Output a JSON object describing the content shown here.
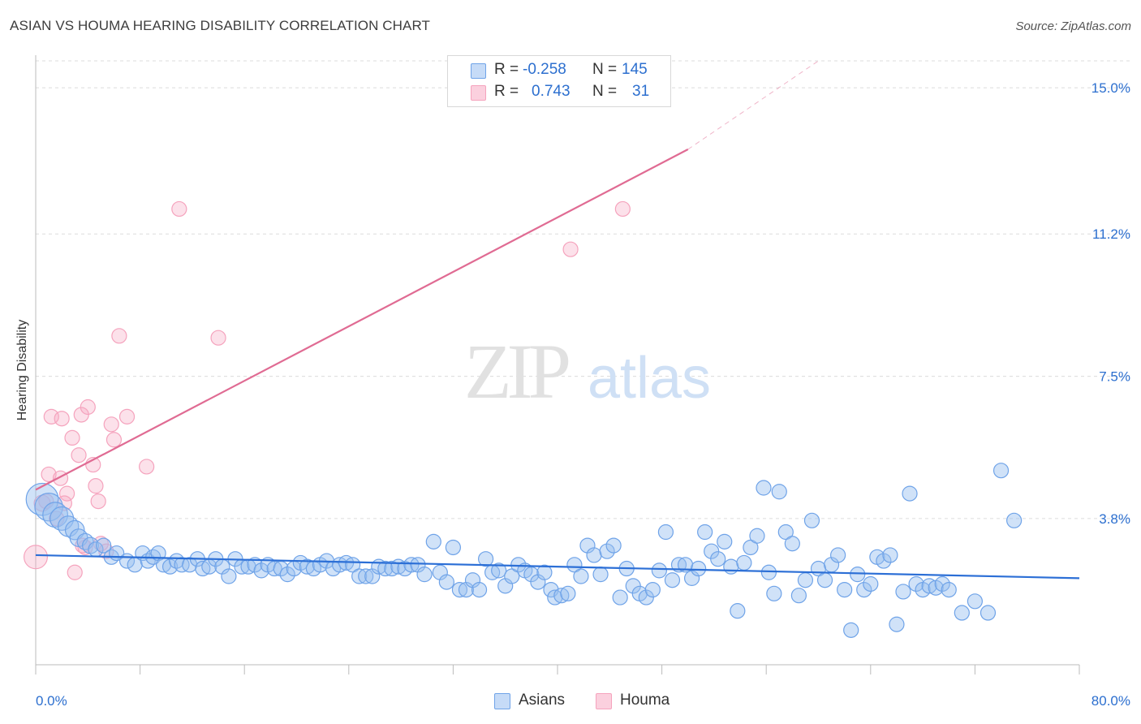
{
  "title": "ASIAN VS HOUMA HEARING DISABILITY CORRELATION CHART",
  "source": "Source: ZipAtlas.com",
  "watermark": {
    "zip": "ZIP",
    "atlas": "atlas"
  },
  "stats": [
    {
      "r_label": "R =",
      "r_value": "-0.258",
      "n_label": "N =",
      "n_value": "145",
      "color": "#a8c8f5"
    },
    {
      "r_label": "R =",
      "r_value": "0.743",
      "n_label": "N =",
      "n_value": "31",
      "color": "#f5b3c8"
    }
  ],
  "legend": [
    {
      "label": "Asians",
      "color": "#a8c8f5"
    },
    {
      "label": "Houma",
      "color": "#f5b3c8"
    }
  ],
  "chart_data": {
    "type": "scatter",
    "title": "ASIAN VS HOUMA HEARING DISABILITY CORRELATION CHART",
    "xlabel": "",
    "ylabel": "Hearing Disability",
    "xlim": [
      0,
      80
    ],
    "ylim": [
      0,
      15.7
    ],
    "x_tick_labels": [
      "0.0%",
      "80.0%"
    ],
    "y_ticks": [
      3.8,
      7.5,
      11.2,
      15.0
    ],
    "y_tick_labels": [
      "3.8%",
      "7.5%",
      "11.2%",
      "15.0%"
    ],
    "grid": true,
    "series": [
      {
        "name": "Asians",
        "color": "#6fa3e8",
        "line_color": "#2c6fd6",
        "trend": [
          [
            0,
            2.85
          ],
          [
            80,
            2.25
          ]
        ],
        "points": [
          [
            0.5,
            4.3,
            2.2
          ],
          [
            1.0,
            4.1,
            1.9
          ],
          [
            1.5,
            3.9,
            1.7
          ],
          [
            2.0,
            3.8,
            1.6
          ],
          [
            2.5,
            3.6,
            1.4
          ],
          [
            3.0,
            3.5,
            1.3
          ],
          [
            3.3,
            3.3,
            1.2
          ],
          [
            3.8,
            3.2,
            1.1
          ],
          [
            4.2,
            3.1,
            1.1
          ],
          [
            4.6,
            3.0,
            1.0
          ],
          [
            5.2,
            3.1,
            1.0
          ],
          [
            5.8,
            2.8,
            1.0
          ],
          [
            6.2,
            2.9,
            1.0
          ],
          [
            7.0,
            2.7,
            1.0
          ],
          [
            7.6,
            2.6,
            1.0
          ],
          [
            8.2,
            2.9,
            1.0
          ],
          [
            8.6,
            2.7,
            1.0
          ],
          [
            9.0,
            2.8,
            1.0
          ],
          [
            9.4,
            2.9,
            1.0
          ],
          [
            9.8,
            2.6,
            1.0
          ],
          [
            10.3,
            2.55,
            1.0
          ],
          [
            10.8,
            2.7,
            1.0
          ],
          [
            11.2,
            2.6,
            1.0
          ],
          [
            11.8,
            2.6,
            1.0
          ],
          [
            12.4,
            2.75,
            1.0
          ],
          [
            12.8,
            2.5,
            1.0
          ],
          [
            13.3,
            2.55,
            1.0
          ],
          [
            13.8,
            2.75,
            1.0
          ],
          [
            14.3,
            2.55,
            1.0
          ],
          [
            14.8,
            2.3,
            1.0
          ],
          [
            15.3,
            2.75,
            1.0
          ],
          [
            15.8,
            2.55,
            1.0
          ],
          [
            16.3,
            2.55,
            1.0
          ],
          [
            16.8,
            2.6,
            1.0
          ],
          [
            17.3,
            2.45,
            1.0
          ],
          [
            17.8,
            2.6,
            1.0
          ],
          [
            18.3,
            2.5,
            1.0
          ],
          [
            18.8,
            2.5,
            1.0
          ],
          [
            19.3,
            2.35,
            1.0
          ],
          [
            19.8,
            2.5,
            1.0
          ],
          [
            20.3,
            2.65,
            1.0
          ],
          [
            20.8,
            2.55,
            1.0
          ],
          [
            21.3,
            2.5,
            1.0
          ],
          [
            21.8,
            2.6,
            1.0
          ],
          [
            22.3,
            2.7,
            1.0
          ],
          [
            22.8,
            2.5,
            1.0
          ],
          [
            23.3,
            2.6,
            1.0
          ],
          [
            23.8,
            2.65,
            1.0
          ],
          [
            24.3,
            2.6,
            1.0
          ],
          [
            24.8,
            2.3,
            1.0
          ],
          [
            25.3,
            2.3,
            1.0
          ],
          [
            25.8,
            2.3,
            1.0
          ],
          [
            26.3,
            2.55,
            1.0
          ],
          [
            26.8,
            2.5,
            1.0
          ],
          [
            27.3,
            2.5,
            1.0
          ],
          [
            27.8,
            2.55,
            1.0
          ],
          [
            28.3,
            2.5,
            1.0
          ],
          [
            28.8,
            2.6,
            1.0
          ],
          [
            29.3,
            2.6,
            1.0
          ],
          [
            29.8,
            2.35,
            1.0
          ],
          [
            30.5,
            3.2,
            1.0
          ],
          [
            31.0,
            2.4,
            1.0
          ],
          [
            31.5,
            2.15,
            1.0
          ],
          [
            32.0,
            3.05,
            1.0
          ],
          [
            32.5,
            1.95,
            1.0
          ],
          [
            33.0,
            1.95,
            1.0
          ],
          [
            33.5,
            2.2,
            1.0
          ],
          [
            34.0,
            1.95,
            1.0
          ],
          [
            34.5,
            2.75,
            1.0
          ],
          [
            35.0,
            2.4,
            1.0
          ],
          [
            35.5,
            2.45,
            1.0
          ],
          [
            36.0,
            2.05,
            1.0
          ],
          [
            36.5,
            2.3,
            1.0
          ],
          [
            37.0,
            2.6,
            1.0
          ],
          [
            37.5,
            2.45,
            1.0
          ],
          [
            38.0,
            2.35,
            1.0
          ],
          [
            38.5,
            2.15,
            1.0
          ],
          [
            39.0,
            2.4,
            1.0
          ],
          [
            39.5,
            1.95,
            1.0
          ],
          [
            39.8,
            1.75,
            1.0
          ],
          [
            40.3,
            1.8,
            1.0
          ],
          [
            40.8,
            1.85,
            1.0
          ],
          [
            41.3,
            2.6,
            1.0
          ],
          [
            41.8,
            2.3,
            1.0
          ],
          [
            42.3,
            3.1,
            1.0
          ],
          [
            42.8,
            2.85,
            1.0
          ],
          [
            43.3,
            2.35,
            1.0
          ],
          [
            43.8,
            2.95,
            1.0
          ],
          [
            44.3,
            3.1,
            1.0
          ],
          [
            44.8,
            1.75,
            1.0
          ],
          [
            45.3,
            2.5,
            1.0
          ],
          [
            45.8,
            2.05,
            1.0
          ],
          [
            46.3,
            1.85,
            1.0
          ],
          [
            46.8,
            1.75,
            1.0
          ],
          [
            47.3,
            1.95,
            1.0
          ],
          [
            47.8,
            2.45,
            1.0
          ],
          [
            48.3,
            3.45,
            1.0
          ],
          [
            48.8,
            2.2,
            1.0
          ],
          [
            49.3,
            2.6,
            1.0
          ],
          [
            49.8,
            2.6,
            1.0
          ],
          [
            50.3,
            2.25,
            1.0
          ],
          [
            50.8,
            2.5,
            1.0
          ],
          [
            51.3,
            3.45,
            1.0
          ],
          [
            51.8,
            2.95,
            1.0
          ],
          [
            52.3,
            2.75,
            1.0
          ],
          [
            52.8,
            3.2,
            1.0
          ],
          [
            53.3,
            2.55,
            1.0
          ],
          [
            53.8,
            1.4,
            1.0
          ],
          [
            54.3,
            2.65,
            1.0
          ],
          [
            54.8,
            3.05,
            1.0
          ],
          [
            55.3,
            3.35,
            1.0
          ],
          [
            55.8,
            4.6,
            1.0
          ],
          [
            56.2,
            2.4,
            1.0
          ],
          [
            56.6,
            1.85,
            1.0
          ],
          [
            57.0,
            4.5,
            1.0
          ],
          [
            57.5,
            3.45,
            1.0
          ],
          [
            58.0,
            3.15,
            1.0
          ],
          [
            58.5,
            1.8,
            1.0
          ],
          [
            59.0,
            2.2,
            1.0
          ],
          [
            59.5,
            3.75,
            1.0
          ],
          [
            60.0,
            2.5,
            1.0
          ],
          [
            60.5,
            2.2,
            1.0
          ],
          [
            61.0,
            2.6,
            1.0
          ],
          [
            61.5,
            2.85,
            1.0
          ],
          [
            62.0,
            1.95,
            1.0
          ],
          [
            62.5,
            0.9,
            1.0
          ],
          [
            63.0,
            2.35,
            1.0
          ],
          [
            63.5,
            1.95,
            1.0
          ],
          [
            64.0,
            2.1,
            1.0
          ],
          [
            64.5,
            2.8,
            1.0
          ],
          [
            65.0,
            2.7,
            1.0
          ],
          [
            65.5,
            2.85,
            1.0
          ],
          [
            66.0,
            1.05,
            1.0
          ],
          [
            66.5,
            1.9,
            1.0
          ],
          [
            67.0,
            4.45,
            1.0
          ],
          [
            67.5,
            2.1,
            1.0
          ],
          [
            68.0,
            1.95,
            1.0
          ],
          [
            68.5,
            2.05,
            1.0
          ],
          [
            69.0,
            2.0,
            1.0
          ],
          [
            69.5,
            2.1,
            1.0
          ],
          [
            70.0,
            1.95,
            1.0
          ],
          [
            71.0,
            1.35,
            1.0
          ],
          [
            72.0,
            1.65,
            1.0
          ],
          [
            73.0,
            1.35,
            1.0
          ],
          [
            74.0,
            5.05,
            1.0
          ],
          [
            75.0,
            3.75,
            1.0
          ]
        ]
      },
      {
        "name": "Houma",
        "color": "#f5a3bd",
        "line_color": "#e06b93",
        "trend": [
          [
            0,
            4.55
          ],
          [
            50,
            13.4
          ]
        ],
        "trend_extension": [
          [
            50,
            13.4
          ],
          [
            60,
            15.7
          ]
        ],
        "points": [
          [
            0.0,
            2.8,
            1.6
          ],
          [
            0.5,
            4.2,
            1.1
          ],
          [
            1.0,
            4.95,
            1.0
          ],
          [
            1.2,
            6.45,
            1.0
          ],
          [
            1.6,
            3.8,
            1.0
          ],
          [
            1.9,
            4.85,
            1.0
          ],
          [
            2.0,
            6.4,
            1.0
          ],
          [
            2.4,
            4.45,
            1.0
          ],
          [
            2.8,
            5.9,
            1.0
          ],
          [
            3.0,
            2.4,
            1.0
          ],
          [
            3.3,
            5.45,
            1.0
          ],
          [
            3.5,
            6.5,
            1.0
          ],
          [
            3.8,
            3.05,
            1.0
          ],
          [
            4.0,
            6.7,
            1.0
          ],
          [
            4.4,
            5.2,
            1.0
          ],
          [
            4.6,
            4.65,
            1.0
          ],
          [
            4.8,
            4.25,
            1.0
          ],
          [
            5.0,
            3.15,
            1.0
          ],
          [
            5.4,
            2.95,
            1.0
          ],
          [
            5.8,
            6.25,
            1.0
          ],
          [
            6.0,
            5.85,
            1.0
          ],
          [
            6.4,
            8.55,
            1.0
          ],
          [
            7.0,
            6.45,
            1.0
          ],
          [
            8.5,
            5.15,
            1.0
          ],
          [
            11.0,
            11.85,
            1.0
          ],
          [
            14.0,
            8.5,
            1.0
          ],
          [
            41.0,
            10.8,
            1.0
          ],
          [
            45.0,
            11.85,
            1.0
          ],
          [
            2.2,
            4.2,
            1.0
          ],
          [
            3.6,
            3.1,
            1.0
          ],
          [
            0.8,
            4.25,
            1.0
          ]
        ]
      }
    ]
  }
}
